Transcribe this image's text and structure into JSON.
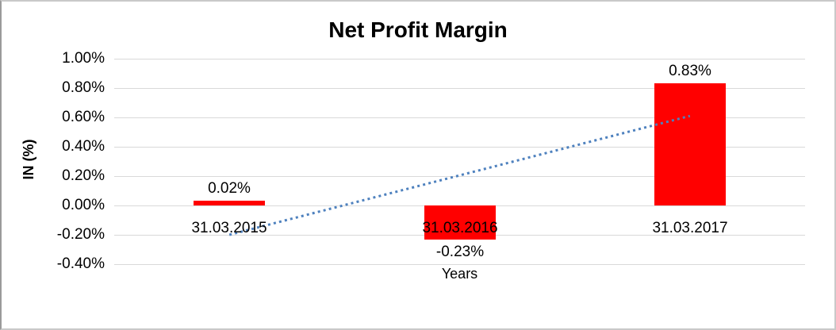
{
  "chart_data": {
    "type": "bar",
    "title": "Net Profit Margin",
    "xlabel": "Years",
    "ylabel": "IN (%)",
    "categories": [
      "31.03.2015",
      "31.03.2016",
      "31.03.2017"
    ],
    "values": [
      0.02,
      -0.23,
      0.83
    ],
    "value_labels": [
      "0.02%",
      "-0.23%",
      "0.83%"
    ],
    "ylim": [
      -0.4,
      1.0
    ],
    "ytick_labels": [
      "1.00%",
      "0.80%",
      "0.60%",
      "0.40%",
      "0.20%",
      "0.00%",
      "-0.20%",
      "-0.40%"
    ],
    "ytick_values": [
      1.0,
      0.8,
      0.6,
      0.4,
      0.2,
      0.0,
      -0.2,
      -0.4
    ],
    "grid": true,
    "legend": false,
    "bar_color": "#ff0000",
    "gridline_color": "#d9d9d9",
    "trendline": {
      "type": "linear",
      "style": "dotted",
      "color": "#4e81be",
      "start_value": -0.2,
      "end_value": 0.61
    }
  }
}
